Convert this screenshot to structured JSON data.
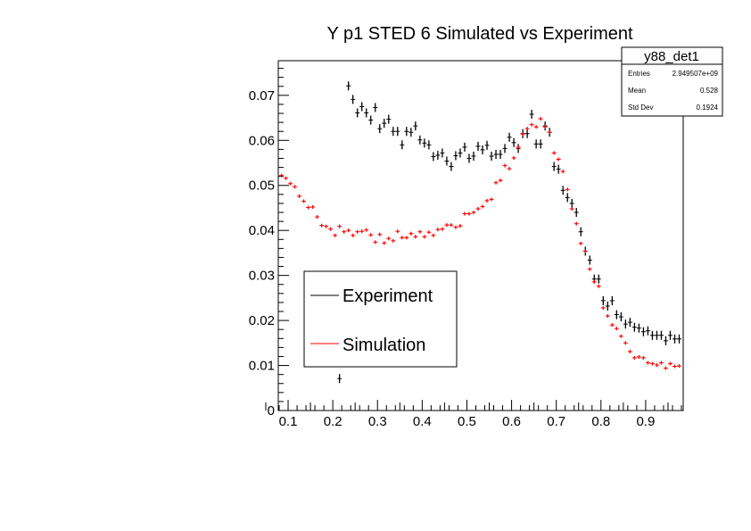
{
  "chart_data": {
    "type": "scatter",
    "title": "Y p1 STED 6 Simulated vs Experiment",
    "xlabel": "",
    "ylabel": "",
    "xlim": [
      0.078,
      0.984
    ],
    "ylim": [
      0,
      0.0777
    ],
    "x_ticks": [
      "0.1",
      "0.2",
      "0.3",
      "0.4",
      "0.5",
      "0.6",
      "0.7",
      "0.8",
      "0.9"
    ],
    "y_ticks": [
      "0",
      "0.01",
      "0.02",
      "0.03",
      "0.04",
      "0.05",
      "0.06",
      "0.07"
    ],
    "bin_width": 0.01,
    "grid": false,
    "legend_placement": "bottom-left",
    "stats_box": {
      "title": "y88_det1",
      "rows": [
        {
          "label": "Entries",
          "value": "2.949507e+09"
        },
        {
          "label": "Mean",
          "value": "0.528"
        },
        {
          "label": "Std Dev",
          "value": "0.1924"
        }
      ]
    },
    "series": [
      {
        "name": "Experiment",
        "color": "#000000",
        "x_start": 0.215,
        "values": [
          0.0071,
          null,
          0.0721,
          0.0691,
          0.0661,
          0.0675,
          0.0661,
          0.0645,
          0.0673,
          0.0626,
          0.0638,
          0.0647,
          0.062,
          0.062,
          0.059,
          0.062,
          0.0618,
          0.0632,
          0.0601,
          0.0594,
          0.059,
          0.0564,
          0.0567,
          0.0572,
          0.0554,
          0.0542,
          0.0566,
          0.0572,
          0.0585,
          0.056,
          0.0565,
          0.0587,
          0.0579,
          0.0589,
          0.0565,
          0.0569,
          0.0569,
          0.0582,
          0.0607,
          0.0595,
          0.0582,
          0.0615,
          0.0615,
          0.0658,
          0.0592,
          0.0592,
          0.0632,
          0.0618,
          0.0542,
          0.0536,
          0.0489,
          0.0473,
          0.046,
          0.044,
          0.0397,
          0.0354,
          0.0334,
          0.0292,
          0.0292,
          0.0244,
          0.0232,
          0.0244,
          0.0213,
          0.0208,
          0.0192,
          0.0196,
          0.0185,
          0.0183,
          0.0175,
          0.0177,
          0.0167,
          0.0167,
          0.0167,
          0.0155,
          0.0167,
          0.0159,
          0.0159
        ],
        "error": 0.0009
      },
      {
        "name": "Simulation",
        "color": "#ff0000",
        "x_start": 0.085,
        "values": [
          0.0522,
          0.0516,
          0.0504,
          0.0497,
          0.0476,
          0.0465,
          0.0451,
          0.0452,
          0.043,
          0.0411,
          0.0409,
          0.0403,
          0.0389,
          0.0409,
          0.0397,
          0.04,
          0.0389,
          0.0397,
          0.0398,
          0.0401,
          0.039,
          0.0374,
          0.0391,
          0.0372,
          0.0382,
          0.0377,
          0.0398,
          0.0384,
          0.0384,
          0.0393,
          0.0386,
          0.0397,
          0.0386,
          0.0396,
          0.0389,
          0.0402,
          0.0403,
          0.0412,
          0.0412,
          0.0407,
          0.041,
          0.0437,
          0.0437,
          0.044,
          0.0448,
          0.0453,
          0.0466,
          0.0469,
          0.0506,
          0.0511,
          0.0544,
          0.0537,
          0.0561,
          0.0585,
          0.0614,
          0.0626,
          0.0635,
          0.063,
          0.0648,
          0.063,
          0.0618,
          0.0572,
          0.0558,
          0.0531,
          0.0491,
          0.0448,
          0.0415,
          0.0371,
          0.0354,
          0.0314,
          0.0286,
          0.0276,
          0.0228,
          0.021,
          0.019,
          0.0182,
          0.0165,
          0.015,
          0.0131,
          0.0117,
          0.0119,
          0.0117,
          0.0106,
          0.0104,
          0.0101,
          0.0106,
          0.0094,
          0.0104,
          0.0098,
          0.0099
        ],
        "error": 0.0003
      }
    ]
  }
}
